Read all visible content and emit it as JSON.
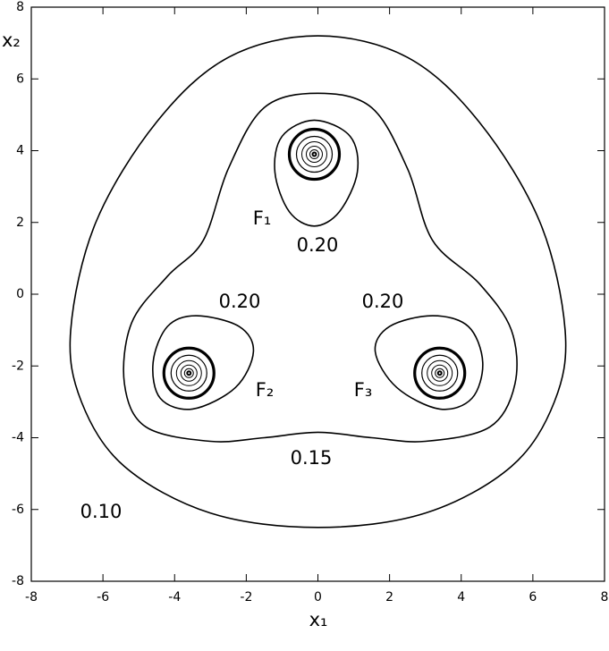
{
  "chart_data": {
    "type": "contour",
    "xlabel": "x₁",
    "ylabel": "x₂",
    "xlim": [
      -8,
      8
    ],
    "ylim": [
      -8,
      8
    ],
    "xticks": [
      -8,
      -6,
      -4,
      -2,
      0,
      2,
      4,
      6,
      8
    ],
    "yticks": [
      -8,
      -6,
      -4,
      -2,
      0,
      2,
      4,
      6,
      8
    ],
    "contour_labels": [
      {
        "value": 0.2,
        "label": "0.20"
      },
      {
        "value": 0.2,
        "label": "0.20"
      },
      {
        "value": 0.2,
        "label": "0.20"
      },
      {
        "value": 0.15,
        "label": "0.15"
      },
      {
        "value": 0.1,
        "label": "0.10"
      }
    ],
    "foci": [
      {
        "name": "F₁",
        "x": -0.1,
        "y": 3.9
      },
      {
        "name": "F₂",
        "x": -3.6,
        "y": -2.2
      },
      {
        "name": "F₃",
        "x": 3.4,
        "y": -2.2
      }
    ],
    "color": "#000000"
  }
}
